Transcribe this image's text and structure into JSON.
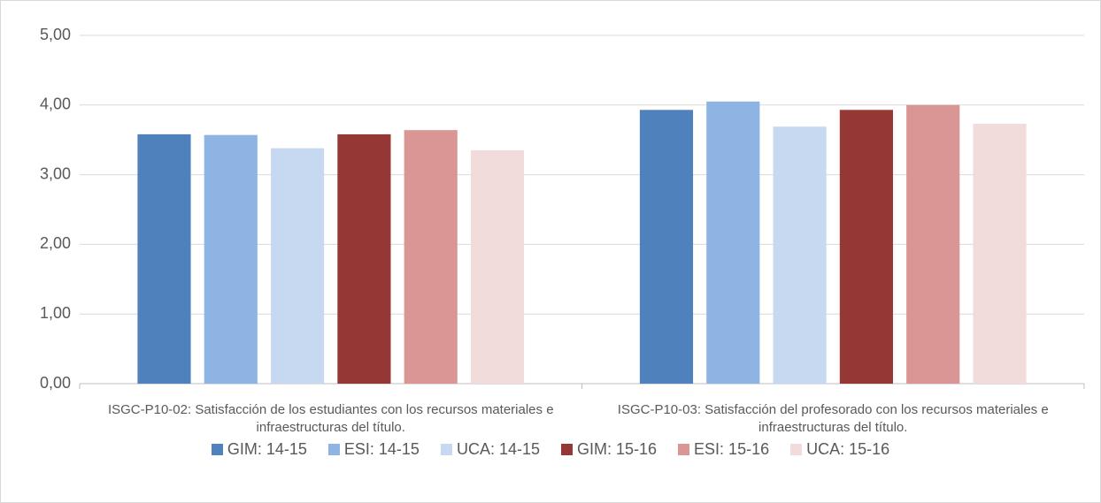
{
  "chart_data": {
    "type": "bar",
    "categories": [
      "ISGC-P10-02: Satisfacción de los estudiantes con los recursos materiales e infraestructuras del título.",
      "ISGC-P10-03: Satisfacción del profesorado con los recursos materiales e infraestructuras del título."
    ],
    "series": [
      {
        "name": "GIM: 14-15",
        "color": "#4f81bd",
        "values": [
          3.58,
          3.93
        ]
      },
      {
        "name": "ESI: 14-15",
        "color": "#8eb4e3",
        "values": [
          3.57,
          4.05
        ]
      },
      {
        "name": "UCA: 14-15",
        "color": "#c6d9f1",
        "values": [
          3.38,
          3.69
        ]
      },
      {
        "name": "GIM: 15-16",
        "color": "#953735",
        "values": [
          3.58,
          3.93
        ]
      },
      {
        "name": "ESI: 15-16",
        "color": "#d99694",
        "values": [
          3.64,
          4.0
        ]
      },
      {
        "name": "UCA: 15-16",
        "color": "#f2dcdb",
        "values": [
          3.35,
          3.73
        ]
      }
    ],
    "ylim": [
      0,
      5
    ],
    "yticks": [
      {
        "value": 0,
        "label": "0,00"
      },
      {
        "value": 1,
        "label": "1,00"
      },
      {
        "value": 2,
        "label": "2,00"
      },
      {
        "value": 3,
        "label": "3,00"
      },
      {
        "value": 4,
        "label": "4,00"
      },
      {
        "value": 5,
        "label": "5,00"
      }
    ],
    "grid": true,
    "legend": "bottom"
  }
}
